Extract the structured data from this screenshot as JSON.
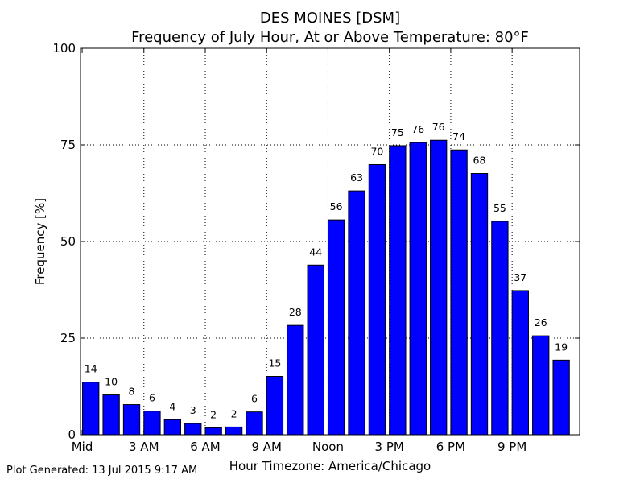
{
  "chart_data": {
    "type": "bar",
    "title": "DES MOINES [DSM]",
    "subtitle": "Frequency of July Hour, At or Above Temperature: 80°F",
    "xlabel": "Hour Timezone: America/Chicago",
    "ylabel": "Frequency [%]",
    "ylim": [
      0,
      100
    ],
    "yticks": [
      0,
      25,
      50,
      75,
      100
    ],
    "xticks": [
      {
        "hour": 0,
        "label": "Mid"
      },
      {
        "hour": 3,
        "label": "3 AM"
      },
      {
        "hour": 6,
        "label": "6 AM"
      },
      {
        "hour": 9,
        "label": "9 AM"
      },
      {
        "hour": 12,
        "label": "Noon"
      },
      {
        "hour": 15,
        "label": "3 PM"
      },
      {
        "hour": 18,
        "label": "6 PM"
      },
      {
        "hour": 21,
        "label": "9 PM"
      }
    ],
    "categories": [
      0,
      1,
      2,
      3,
      4,
      5,
      6,
      7,
      8,
      9,
      10,
      11,
      12,
      13,
      14,
      15,
      16,
      17,
      18,
      19,
      20,
      21,
      22,
      23
    ],
    "values": [
      13.6,
      10.3,
      7.8,
      6.1,
      3.9,
      2.9,
      1.8,
      2.0,
      5.9,
      15.1,
      28.3,
      43.9,
      55.6,
      63.1,
      69.9,
      74.8,
      75.6,
      76.2,
      73.7,
      67.6,
      55.2,
      37.3,
      25.6,
      19.3
    ],
    "bar_labels": [
      "14",
      "10",
      "8",
      "6",
      "4",
      "3",
      "2",
      "2",
      "6",
      "15",
      "28",
      "44",
      "56",
      "63",
      "70",
      "75",
      "76",
      "76",
      "74",
      "68",
      "55",
      "37",
      "26",
      "19"
    ],
    "grid": true,
    "bar_color": "#0000ff"
  },
  "footer": "Plot Generated: 13 Jul 2015 9:17 AM"
}
